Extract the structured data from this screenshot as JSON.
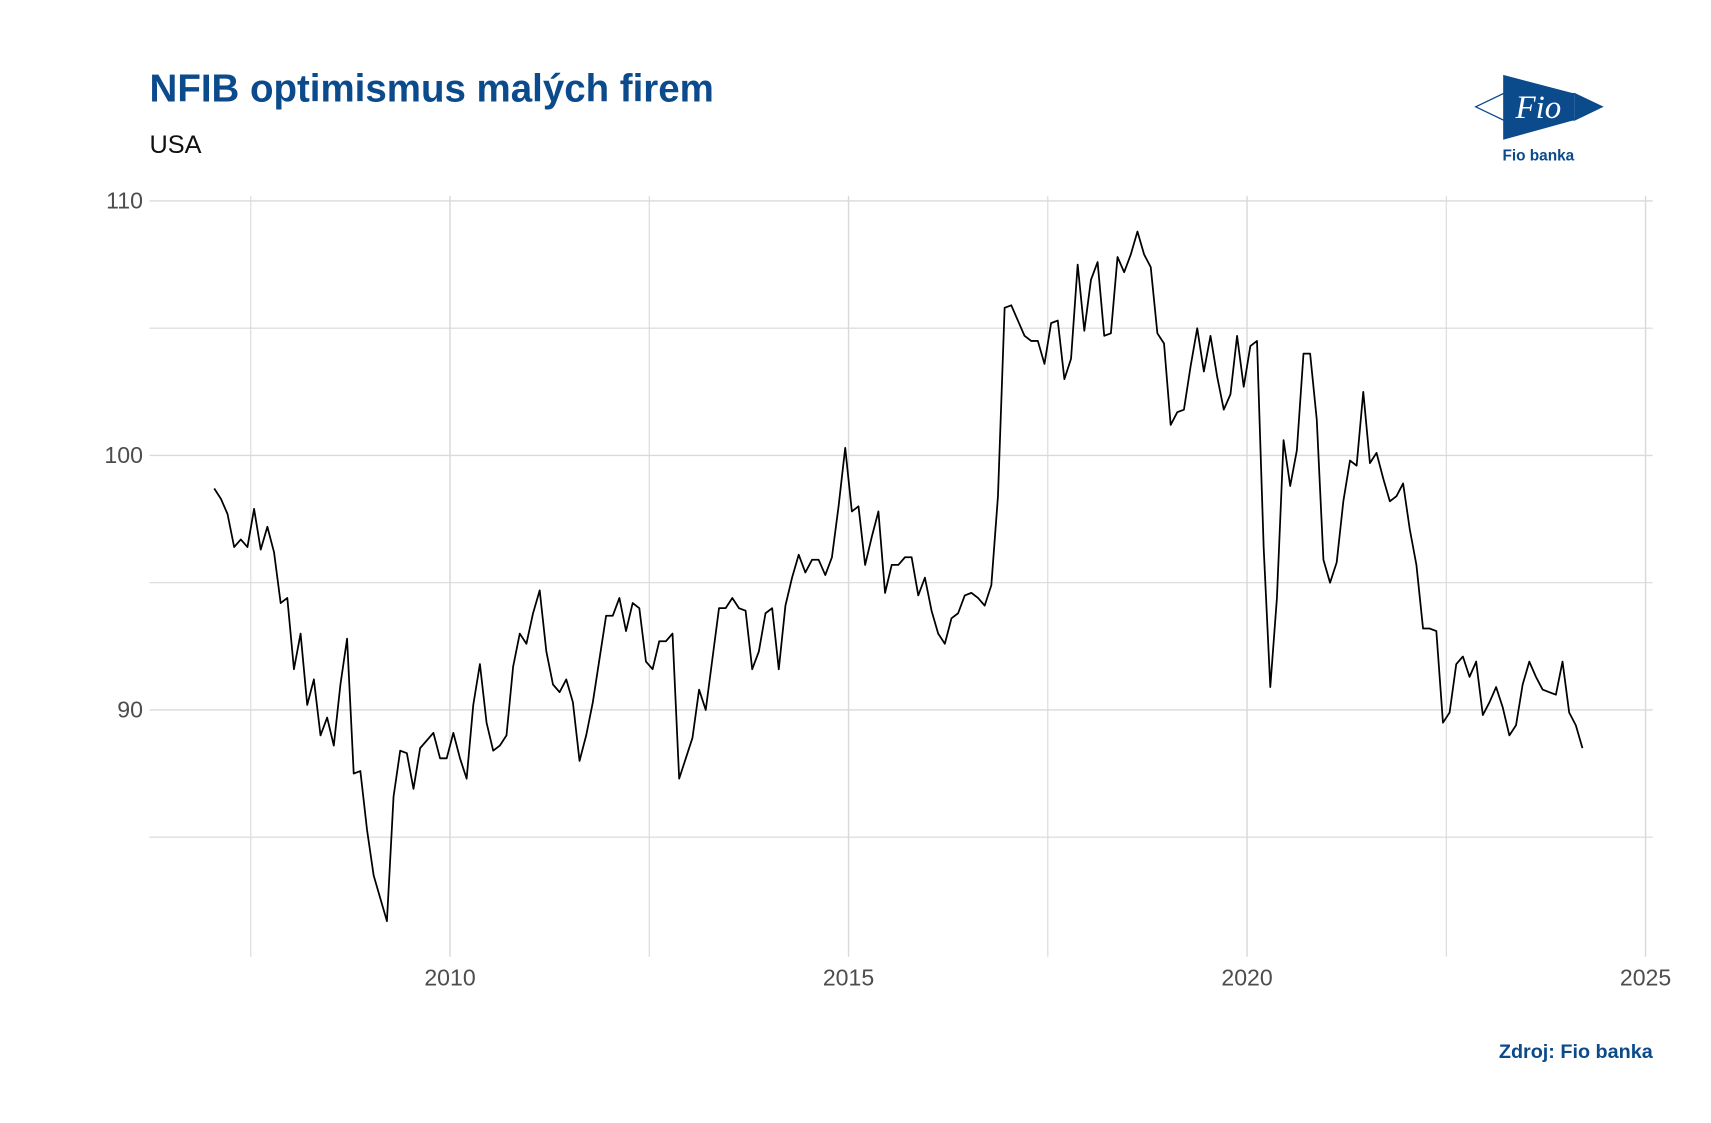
{
  "chart_data": {
    "type": "line",
    "title": "NFIB optimismus malých firem",
    "subtitle": "USA",
    "source": "Zdroj: Fio banka",
    "logo": {
      "mark": "Fio",
      "name": "Fio banka"
    },
    "xlim": [
      2006.23,
      2025.09
    ],
    "xticks": [
      2010,
      2015,
      2020,
      2025
    ],
    "x_minor_gridlines": [
      2007.5,
      2012.5,
      2017.5,
      2022.5
    ],
    "ylim": [
      80.3,
      110.2
    ],
    "yticks": [
      90,
      100,
      110
    ],
    "y_minor_gridlines": [
      85,
      95,
      105
    ],
    "grid": true,
    "x": [
      "2007-01",
      "2007-02",
      "2007-03",
      "2007-04",
      "2007-05",
      "2007-06",
      "2007-07",
      "2007-08",
      "2007-09",
      "2007-10",
      "2007-11",
      "2007-12",
      "2008-01",
      "2008-02",
      "2008-03",
      "2008-04",
      "2008-05",
      "2008-06",
      "2008-07",
      "2008-08",
      "2008-09",
      "2008-10",
      "2008-11",
      "2008-12",
      "2009-01",
      "2009-02",
      "2009-03",
      "2009-04",
      "2009-05",
      "2009-06",
      "2009-07",
      "2009-08",
      "2009-09",
      "2009-10",
      "2009-11",
      "2009-12",
      "2010-01",
      "2010-02",
      "2010-03",
      "2010-04",
      "2010-05",
      "2010-06",
      "2010-07",
      "2010-08",
      "2010-09",
      "2010-10",
      "2010-11",
      "2010-12",
      "2011-01",
      "2011-02",
      "2011-03",
      "2011-04",
      "2011-05",
      "2011-06",
      "2011-07",
      "2011-08",
      "2011-09",
      "2011-10",
      "2011-11",
      "2011-12",
      "2012-01",
      "2012-02",
      "2012-03",
      "2012-04",
      "2012-05",
      "2012-06",
      "2012-07",
      "2012-08",
      "2012-09",
      "2012-10",
      "2012-11",
      "2012-12",
      "2013-01",
      "2013-02",
      "2013-03",
      "2013-04",
      "2013-05",
      "2013-06",
      "2013-07",
      "2013-08",
      "2013-09",
      "2013-10",
      "2013-11",
      "2013-12",
      "2014-01",
      "2014-02",
      "2014-03",
      "2014-04",
      "2014-05",
      "2014-06",
      "2014-07",
      "2014-08",
      "2014-09",
      "2014-10",
      "2014-11",
      "2014-12",
      "2015-01",
      "2015-02",
      "2015-03",
      "2015-04",
      "2015-05",
      "2015-06",
      "2015-07",
      "2015-08",
      "2015-09",
      "2015-10",
      "2015-11",
      "2015-12",
      "2016-01",
      "2016-02",
      "2016-03",
      "2016-04",
      "2016-05",
      "2016-06",
      "2016-07",
      "2016-08",
      "2016-09",
      "2016-10",
      "2016-11",
      "2016-12",
      "2017-01",
      "2017-02",
      "2017-03",
      "2017-04",
      "2017-05",
      "2017-06",
      "2017-07",
      "2017-08",
      "2017-09",
      "2017-10",
      "2017-11",
      "2017-12",
      "2018-01",
      "2018-02",
      "2018-03",
      "2018-04",
      "2018-05",
      "2018-06",
      "2018-07",
      "2018-08",
      "2018-09",
      "2018-10",
      "2018-11",
      "2018-12",
      "2019-01",
      "2019-02",
      "2019-03",
      "2019-04",
      "2019-05",
      "2019-06",
      "2019-07",
      "2019-08",
      "2019-09",
      "2019-10",
      "2019-11",
      "2019-12",
      "2020-01",
      "2020-02",
      "2020-03",
      "2020-04",
      "2020-05",
      "2020-06",
      "2020-07",
      "2020-08",
      "2020-09",
      "2020-10",
      "2020-11",
      "2020-12",
      "2021-01",
      "2021-02",
      "2021-03",
      "2021-04",
      "2021-05",
      "2021-06",
      "2021-07",
      "2021-08",
      "2021-09",
      "2021-10",
      "2021-11",
      "2021-12",
      "2022-01",
      "2022-02",
      "2022-03",
      "2022-04",
      "2022-05",
      "2022-06",
      "2022-07",
      "2022-08",
      "2022-09",
      "2022-10",
      "2022-11",
      "2022-12",
      "2023-01",
      "2023-02",
      "2023-03",
      "2023-04",
      "2023-05",
      "2023-06",
      "2023-07",
      "2023-08",
      "2023-09",
      "2023-10",
      "2023-11",
      "2023-12",
      "2024-01",
      "2024-02",
      "2024-03"
    ],
    "series": [
      {
        "color": "#000000",
        "values": [
          98.7,
          98.3,
          97.7,
          96.4,
          96.7,
          96.4,
          97.9,
          96.3,
          97.2,
          96.2,
          94.2,
          94.4,
          91.6,
          93.0,
          90.2,
          91.2,
          89.0,
          89.7,
          88.6,
          91.0,
          92.8,
          87.5,
          87.6,
          85.3,
          83.5,
          82.6,
          81.7,
          86.6,
          88.4,
          88.3,
          86.9,
          88.5,
          88.8,
          89.1,
          88.1,
          88.1,
          89.1,
          88.1,
          87.3,
          90.2,
          91.8,
          89.5,
          88.4,
          88.6,
          89.0,
          91.7,
          93.0,
          92.6,
          93.8,
          94.7,
          92.3,
          91.0,
          90.7,
          91.2,
          90.3,
          88.0,
          89.0,
          90.3,
          92.0,
          93.7,
          93.7,
          94.4,
          93.1,
          94.2,
          94.0,
          91.9,
          91.6,
          92.7,
          92.7,
          93.0,
          87.3,
          88.1,
          88.9,
          90.8,
          90.0,
          92.0,
          94.0,
          94.0,
          94.4,
          94.0,
          93.9,
          91.6,
          92.3,
          93.8,
          94.0,
          91.6,
          94.1,
          95.2,
          96.1,
          95.4,
          95.9,
          95.9,
          95.3,
          96.0,
          98.0,
          100.3,
          97.8,
          98.0,
          95.7,
          96.8,
          97.8,
          94.6,
          95.7,
          95.7,
          96.0,
          96.0,
          94.5,
          95.2,
          93.9,
          93.0,
          92.6,
          93.6,
          93.8,
          94.5,
          94.6,
          94.4,
          94.1,
          94.9,
          98.4,
          105.8,
          105.9,
          105.3,
          104.7,
          104.5,
          104.5,
          103.6,
          105.2,
          105.3,
          103.0,
          103.8,
          107.5,
          104.9,
          106.9,
          107.6,
          104.7,
          104.8,
          107.8,
          107.2,
          107.9,
          108.8,
          107.9,
          107.4,
          104.8,
          104.4,
          101.2,
          101.7,
          101.8,
          103.5,
          105.0,
          103.3,
          104.7,
          103.1,
          101.8,
          102.4,
          104.7,
          102.7,
          104.3,
          104.5,
          96.4,
          90.9,
          94.4,
          100.6,
          98.8,
          100.2,
          104.0,
          104.0,
          101.4,
          95.9,
          95.0,
          95.8,
          98.2,
          99.8,
          99.6,
          102.5,
          99.7,
          100.1,
          99.1,
          98.2,
          98.4,
          98.9,
          97.1,
          95.7,
          93.2,
          93.2,
          93.1,
          89.5,
          89.9,
          91.8,
          92.1,
          91.3,
          91.9,
          89.8,
          90.3,
          90.9,
          90.1,
          89.0,
          89.4,
          91.0,
          91.9,
          91.3,
          90.8,
          90.7,
          90.6,
          91.9,
          89.9,
          89.4,
          88.5
        ]
      }
    ]
  }
}
